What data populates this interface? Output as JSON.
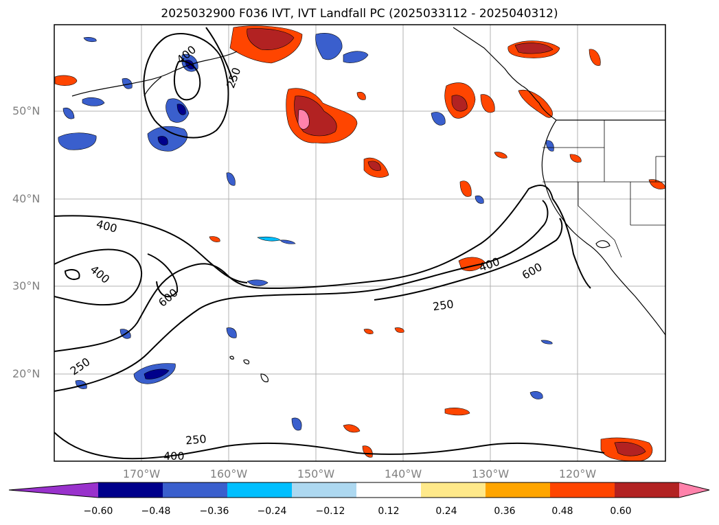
{
  "title": "2025032900 F036 IVT, IVT Landfall PC (2025033112 - 2025040312)",
  "lat_labels": [
    "50°N",
    "40°N",
    "30°N",
    "20°N"
  ],
  "lon_labels": [
    "170°W",
    "160°W",
    "150°W",
    "140°W",
    "130°W",
    "120°W"
  ],
  "contour_labels": [
    "400",
    "250",
    "400",
    "400",
    "600",
    "250",
    "250",
    "400",
    "600",
    "250",
    "400"
  ],
  "colorbar": {
    "tick_labels": [
      "−0.60",
      "−0.48",
      "−0.36",
      "−0.24",
      "−0.12",
      "0.12",
      "0.24",
      "0.36",
      "0.48",
      "0.60"
    ],
    "colors": [
      "#9932cc",
      "#00008b",
      "#3a5fcd",
      "#00bfff",
      "#add8f0",
      "#ffffff",
      "#ffe98a",
      "#ffa500",
      "#ff4500",
      "#b22222",
      "#ff82ab"
    ]
  },
  "colors": {
    "frame": "#000000",
    "grid": "#b0b0b0",
    "label_gray": "#808080"
  }
}
